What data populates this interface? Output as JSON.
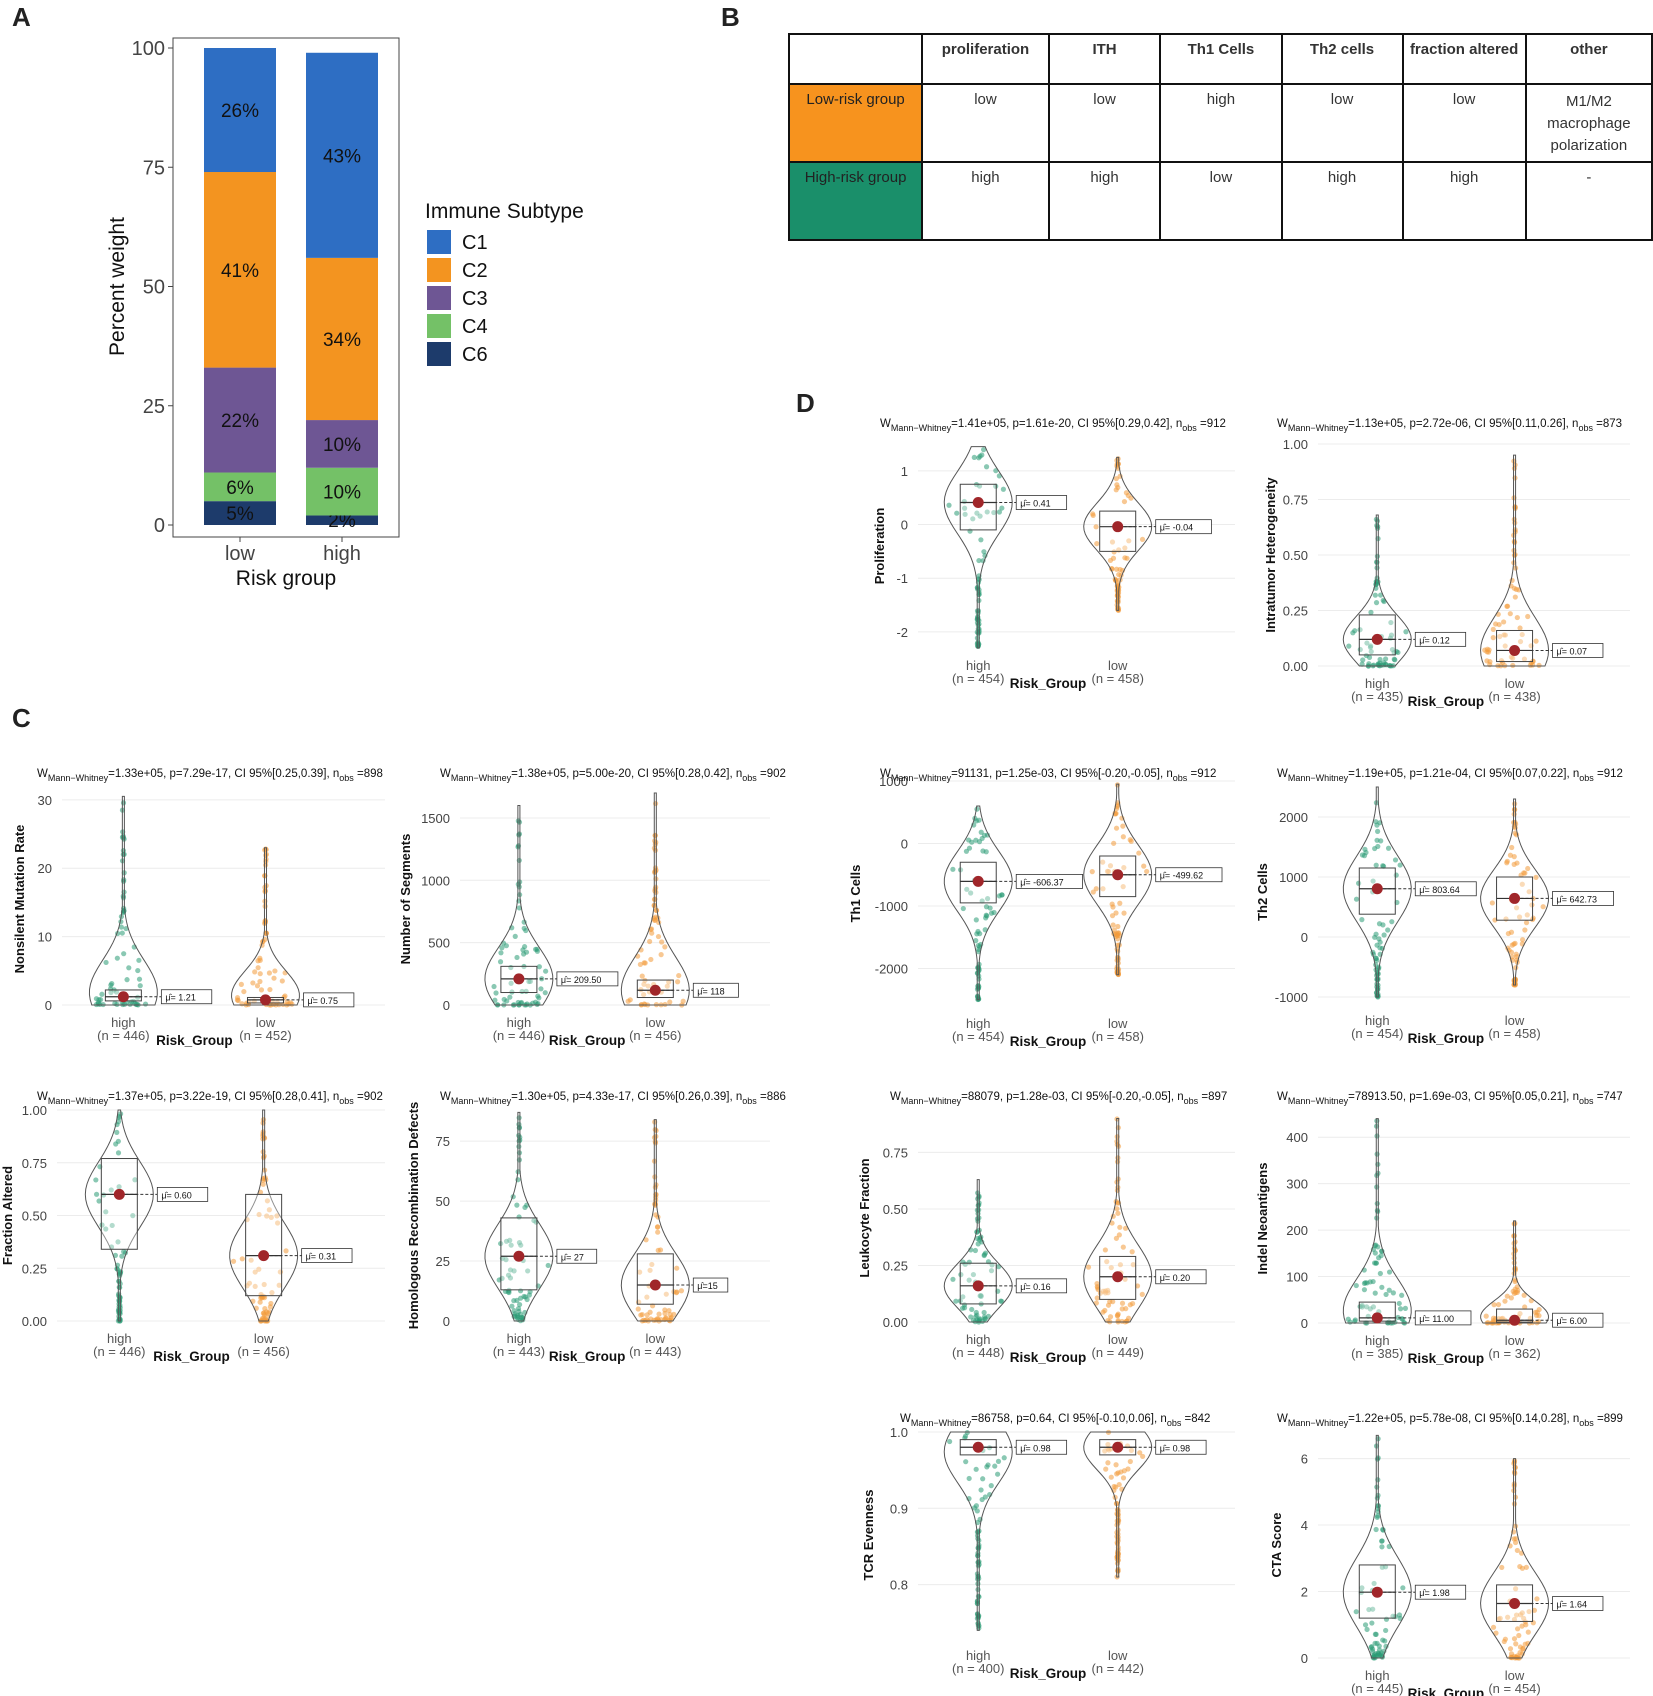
{
  "panels": {
    "a": "A",
    "b": "B",
    "c": "C",
    "d": "D"
  },
  "colors": {
    "C1": "#2e6ec3",
    "C2": "#f39420",
    "C3": "#6e5694",
    "C4": "#74c167",
    "C6": "#1d3b6b",
    "high": "#2a9a74",
    "low": "#f29a3a",
    "mean": "#a0262a"
  },
  "chart_data": [
    {
      "id": "A",
      "type": "bar",
      "title": "",
      "xlabel": "Risk group",
      "ylabel": "Percent weight",
      "categories": [
        "low",
        "high"
      ],
      "ylim": [
        0,
        100
      ],
      "yticks": [
        "0",
        "25",
        "50",
        "75",
        "100"
      ],
      "legend_title": "Immune Subtype",
      "series": [
        {
          "name": "C6",
          "values": [
            5,
            2
          ],
          "labels": [
            "5%",
            "2%"
          ]
        },
        {
          "name": "C4",
          "values": [
            6,
            10
          ],
          "labels": [
            "6%",
            "10%"
          ]
        },
        {
          "name": "C3",
          "values": [
            22,
            10
          ],
          "labels": [
            "22%",
            "10%"
          ]
        },
        {
          "name": "C2",
          "values": [
            41,
            34
          ],
          "labels": [
            "41%",
            "34%"
          ]
        },
        {
          "name": "C1",
          "values": [
            26,
            43
          ],
          "labels": [
            "26%",
            "43%"
          ]
        }
      ],
      "legend_order": [
        "C1",
        "C2",
        "C3",
        "C4",
        "C6"
      ]
    },
    {
      "id": "B",
      "type": "table",
      "columns": [
        "",
        "proliferation",
        "ITH",
        "Th1 Cells",
        "Th2 cells",
        "fraction altered",
        "other"
      ],
      "rows": [
        {
          "group": "Low-risk group",
          "cells": [
            "low",
            "low",
            "high",
            "low",
            "low",
            "M1/M2 macrophage polarization"
          ]
        },
        {
          "group": "High-risk group",
          "cells": [
            "high",
            "high",
            "low",
            "high",
            "high",
            "-"
          ]
        }
      ]
    },
    {
      "id": "violins",
      "type": "scatter",
      "plots": [
        {
          "id": "nsmr",
          "stat": "=1.33e+05, p=7.29e-17, CI 95%[0.25,0.39],",
          "nobs": "=898",
          "ylabel": "Nonsilent Mutation Rate",
          "ylim": [
            0,
            31
          ],
          "yticks": [
            {
              "v": 0,
              "t": "0"
            },
            {
              "v": 10,
              "t": "10"
            },
            {
              "v": 20,
              "t": "20"
            },
            {
              "v": 30,
              "t": "30"
            }
          ],
          "groups": [
            {
              "name": "high",
              "n": "(n = 446)",
              "mean": 1.21,
              "mean_label": "μ̂= 1.21",
              "q1": 0.6,
              "q3": 2.2,
              "min": 0,
              "max": 30.5,
              "vmax": 30.5
            },
            {
              "name": "low",
              "n": "(n = 452)",
              "mean": 0.75,
              "mean_label": "μ̂= 0.75",
              "q1": 0.3,
              "q3": 1.1,
              "min": 0,
              "max": 23,
              "vmax": 23
            }
          ]
        },
        {
          "id": "segs",
          "stat": "=1.38e+05, p=5.00e-20, CI 95%[0.28,0.42],",
          "nobs": "=902",
          "ylabel": "Number of Segments",
          "ylim": [
            0,
            1700
          ],
          "yticks": [
            {
              "v": 0,
              "t": "0"
            },
            {
              "v": 500,
              "t": "500"
            },
            {
              "v": 1000,
              "t": "1000"
            },
            {
              "v": 1500,
              "t": "1500"
            }
          ],
          "groups": [
            {
              "name": "high",
              "n": "(n = 446)",
              "mean": 209.5,
              "mean_label": "μ̂= 209.50",
              "q1": 100,
              "q3": 310,
              "min": 0,
              "max": 1600,
              "vmax": 1600
            },
            {
              "name": "low",
              "n": "(n = 456)",
              "mean": 118,
              "mean_label": "μ̂= 118",
              "q1": 60,
              "q3": 200,
              "min": 0,
              "max": 1700,
              "vmax": 1700
            }
          ]
        },
        {
          "id": "frac",
          "stat": "=1.37e+05, p=3.22e-19, CI 95%[0.28,0.41],",
          "nobs": "=902",
          "ylabel": "Fraction Altered",
          "ylim": [
            0,
            1
          ],
          "yticks": [
            {
              "v": 0,
              "t": "0.00"
            },
            {
              "v": 0.25,
              "t": "0.25"
            },
            {
              "v": 0.5,
              "t": "0.50"
            },
            {
              "v": 0.75,
              "t": "0.75"
            },
            {
              "v": 1,
              "t": "1.00"
            }
          ],
          "groups": [
            {
              "name": "high",
              "n": "(n = 446)",
              "mean": 0.6,
              "mean_label": "μ̂= 0.60",
              "q1": 0.34,
              "q3": 0.77,
              "min": 0,
              "max": 1,
              "vmax": 1
            },
            {
              "name": "low",
              "n": "(n = 456)",
              "mean": 0.31,
              "mean_label": "μ̂= 0.31",
              "q1": 0.12,
              "q3": 0.6,
              "min": 0,
              "max": 1,
              "vmax": 1
            }
          ]
        },
        {
          "id": "hrd",
          "stat": "=1.30e+05, p=4.33e-17, CI 95%[0.26,0.39],",
          "nobs": "=886",
          "ylabel": "Homologous Recombination Defects",
          "ylim": [
            0,
            88
          ],
          "yticks": [
            {
              "v": 0,
              "t": "0"
            },
            {
              "v": 25,
              "t": "25"
            },
            {
              "v": 50,
              "t": "50"
            },
            {
              "v": 75,
              "t": "75"
            }
          ],
          "groups": [
            {
              "name": "high",
              "n": "(n = 443)",
              "mean": 27,
              "mean_label": "μ̂= 27",
              "q1": 13,
              "q3": 43,
              "min": 0,
              "max": 87,
              "vmax": 87
            },
            {
              "name": "low",
              "n": "(n = 443)",
              "mean": 15,
              "mean_label": "μ̂=15",
              "q1": 7,
              "q3": 28,
              "min": 0,
              "max": 84,
              "vmax": 84
            }
          ]
        },
        {
          "id": "prolif",
          "stat": "=1.41e+05, p=1.61e-20, CI 95%[0.29,0.42],",
          "nobs": "=912",
          "ylabel": "Proliferation",
          "ylim": [
            -2.3,
            1.5
          ],
          "yticks": [
            {
              "v": -2,
              "t": "-2"
            },
            {
              "v": -1,
              "t": "-1"
            },
            {
              "v": 0,
              "t": "0"
            },
            {
              "v": 1,
              "t": "1"
            }
          ],
          "groups": [
            {
              "name": "high",
              "n": "(n = 454)",
              "mean": 0.41,
              "mean_label": "μ̂= 0.41",
              "q1": -0.1,
              "q3": 0.75,
              "min": -2.3,
              "max": 1.45,
              "vmax": 1.45
            },
            {
              "name": "low",
              "n": "(n = 458)",
              "mean": -0.04,
              "mean_label": "μ̂= -0.04",
              "q1": -0.5,
              "q3": 0.25,
              "min": -1.6,
              "max": 1.25,
              "vmax": 1.25
            }
          ]
        },
        {
          "id": "ith",
          "stat": "=1.13e+05, p=2.72e-06, CI 95%[0.11,0.26],",
          "nobs": "=873",
          "ylabel": "Intratumor Heterogeneity",
          "ylim": [
            0,
            1
          ],
          "yticks": [
            {
              "v": 0,
              "t": "0.00"
            },
            {
              "v": 0.25,
              "t": "0.25"
            },
            {
              "v": 0.5,
              "t": "0.50"
            },
            {
              "v": 0.75,
              "t": "0.75"
            },
            {
              "v": 1,
              "t": "1.00"
            }
          ],
          "groups": [
            {
              "name": "high",
              "n": "(n = 435)",
              "mean": 0.12,
              "mean_label": "μ̂= 0.12",
              "q1": 0.05,
              "q3": 0.23,
              "min": 0,
              "max": 0.68,
              "vmax": 0.68
            },
            {
              "name": "low",
              "n": "(n = 438)",
              "mean": 0.07,
              "mean_label": "μ̂= 0.07",
              "q1": 0.02,
              "q3": 0.16,
              "min": 0,
              "max": 0.95,
              "vmax": 0.95
            }
          ]
        },
        {
          "id": "th1",
          "stat": "=91131, p=1.25e-03, CI 95%[-0.20,-0.05],",
          "nobs": "=912",
          "ylabel": "Th1 Cells",
          "ylim": [
            -2600,
            1000
          ],
          "yticks": [
            {
              "v": -2000,
              "t": "-2000"
            },
            {
              "v": -1000,
              "t": "-1000"
            },
            {
              "v": 0,
              "t": "0"
            },
            {
              "v": 1000,
              "t": "1000"
            }
          ],
          "groups": [
            {
              "name": "high",
              "n": "(n = 454)",
              "mean": -606.37,
              "mean_label": "μ̂= -606.37",
              "q1": -950,
              "q3": -300,
              "min": -2500,
              "max": 600,
              "vmax": 600
            },
            {
              "name": "low",
              "n": "(n = 458)",
              "mean": -499.62,
              "mean_label": "μ̂= -499.62",
              "q1": -850,
              "q3": -200,
              "min": -2100,
              "max": 950,
              "vmax": 950
            }
          ]
        },
        {
          "id": "th2",
          "stat": "=1.19e+05, p=1.21e-04, CI 95%[0.07,0.22],",
          "nobs": "=912",
          "ylabel": "Th2 Cells",
          "ylim": [
            -1100,
            2600
          ],
          "yticks": [
            {
              "v": -1000,
              "t": "-1000"
            },
            {
              "v": 0,
              "t": "0"
            },
            {
              "v": 1000,
              "t": "1000"
            },
            {
              "v": 2000,
              "t": "2000"
            }
          ],
          "groups": [
            {
              "name": "high",
              "n": "(n = 454)",
              "mean": 803.64,
              "mean_label": "μ̂= 803.64",
              "q1": 380,
              "q3": 1150,
              "min": -1000,
              "max": 2500,
              "vmax": 2500
            },
            {
              "name": "low",
              "n": "(n = 458)",
              "mean": 642.73,
              "mean_label": "μ̂= 642.73",
              "q1": 280,
              "q3": 1000,
              "min": -800,
              "max": 2300,
              "vmax": 2300
            }
          ]
        },
        {
          "id": "leuk",
          "stat": "=88079, p=1.28e-03, CI 95%[-0.20,-0.05],",
          "nobs": "=897",
          "ylabel": "Leukocyte Fraction",
          "ylim": [
            0,
            0.92
          ],
          "yticks": [
            {
              "v": 0,
              "t": "0.00"
            },
            {
              "v": 0.25,
              "t": "0.25"
            },
            {
              "v": 0.5,
              "t": "0.50"
            },
            {
              "v": 0.75,
              "t": "0.75"
            }
          ],
          "groups": [
            {
              "name": "high",
              "n": "(n = 448)",
              "mean": 0.16,
              "mean_label": "μ̂= 0.16",
              "q1": 0.08,
              "q3": 0.26,
              "min": 0,
              "max": 0.63,
              "vmax": 0.63
            },
            {
              "name": "low",
              "n": "(n = 449)",
              "mean": 0.2,
              "mean_label": "μ̂= 0.20",
              "q1": 0.1,
              "q3": 0.29,
              "min": 0,
              "max": 0.9,
              "vmax": 0.9
            }
          ]
        },
        {
          "id": "indel",
          "stat": "=78913.50, p=1.69e-03, CI 95%[0.05,0.21],",
          "nobs": "=747",
          "ylabel": "Indel Neoantigens",
          "ylim": [
            0,
            450
          ],
          "yticks": [
            {
              "v": 0,
              "t": "0"
            },
            {
              "v": 100,
              "t": "100"
            },
            {
              "v": 200,
              "t": "200"
            },
            {
              "v": 300,
              "t": "300"
            },
            {
              "v": 400,
              "t": "400"
            }
          ],
          "groups": [
            {
              "name": "high",
              "n": "(n = 385)",
              "mean": 11,
              "mean_label": "μ̂= 11.00",
              "q1": 4,
              "q3": 45,
              "min": 0,
              "max": 440,
              "vmax": 440
            },
            {
              "name": "low",
              "n": "(n = 362)",
              "mean": 6,
              "mean_label": "μ̂= 6.00",
              "q1": 2,
              "q3": 30,
              "min": 0,
              "max": 220,
              "vmax": 220
            }
          ]
        },
        {
          "id": "tcr",
          "stat": "=86758, p=0.64, CI 95%[-0.10,0.06],",
          "nobs": "=842",
          "ylabel": "TCR Evenness",
          "ylim": [
            0.73,
            1.0
          ],
          "yticks": [
            {
              "v": 0.8,
              "t": "0.8"
            },
            {
              "v": 0.9,
              "t": "0.9"
            },
            {
              "v": 1.0,
              "t": "1.0"
            }
          ],
          "groups": [
            {
              "name": "high",
              "n": "(n = 400)",
              "mean": 0.98,
              "mean_label": "μ̂= 0.98",
              "q1": 0.97,
              "q3": 0.99,
              "min": 0.74,
              "max": 1.0,
              "vmax": 1.0
            },
            {
              "name": "low",
              "n": "(n = 442)",
              "mean": 0.98,
              "mean_label": "μ̂= 0.98",
              "q1": 0.97,
              "q3": 0.99,
              "min": 0.81,
              "max": 1.0,
              "vmax": 1.0
            }
          ]
        },
        {
          "id": "cta",
          "stat": "=1.22e+05, p=5.78e-08, CI 95%[0.14,0.28],",
          "nobs": "=899",
          "ylabel": "CTA Score",
          "ylim": [
            0,
            6.8
          ],
          "yticks": [
            {
              "v": 0,
              "t": "0"
            },
            {
              "v": 2,
              "t": "2"
            },
            {
              "v": 4,
              "t": "4"
            },
            {
              "v": 6,
              "t": "6"
            }
          ],
          "groups": [
            {
              "name": "high",
              "n": "(n = 445)",
              "mean": 1.98,
              "mean_label": "μ̂= 1.98",
              "q1": 1.2,
              "q3": 2.8,
              "min": 0,
              "max": 6.7,
              "vmax": 6.7
            },
            {
              "name": "low",
              "n": "(n = 454)",
              "mean": 1.64,
              "mean_label": "μ̂= 1.64",
              "q1": 1.1,
              "q3": 2.2,
              "min": 0,
              "max": 6,
              "vmax": 6
            }
          ]
        }
      ],
      "xlabel": "Risk_Group",
      "stat_prefix": "W",
      "stat_sub": "Mann−Whitney",
      "nobs_prefix": "n",
      "nobs_sub": "obs"
    }
  ]
}
